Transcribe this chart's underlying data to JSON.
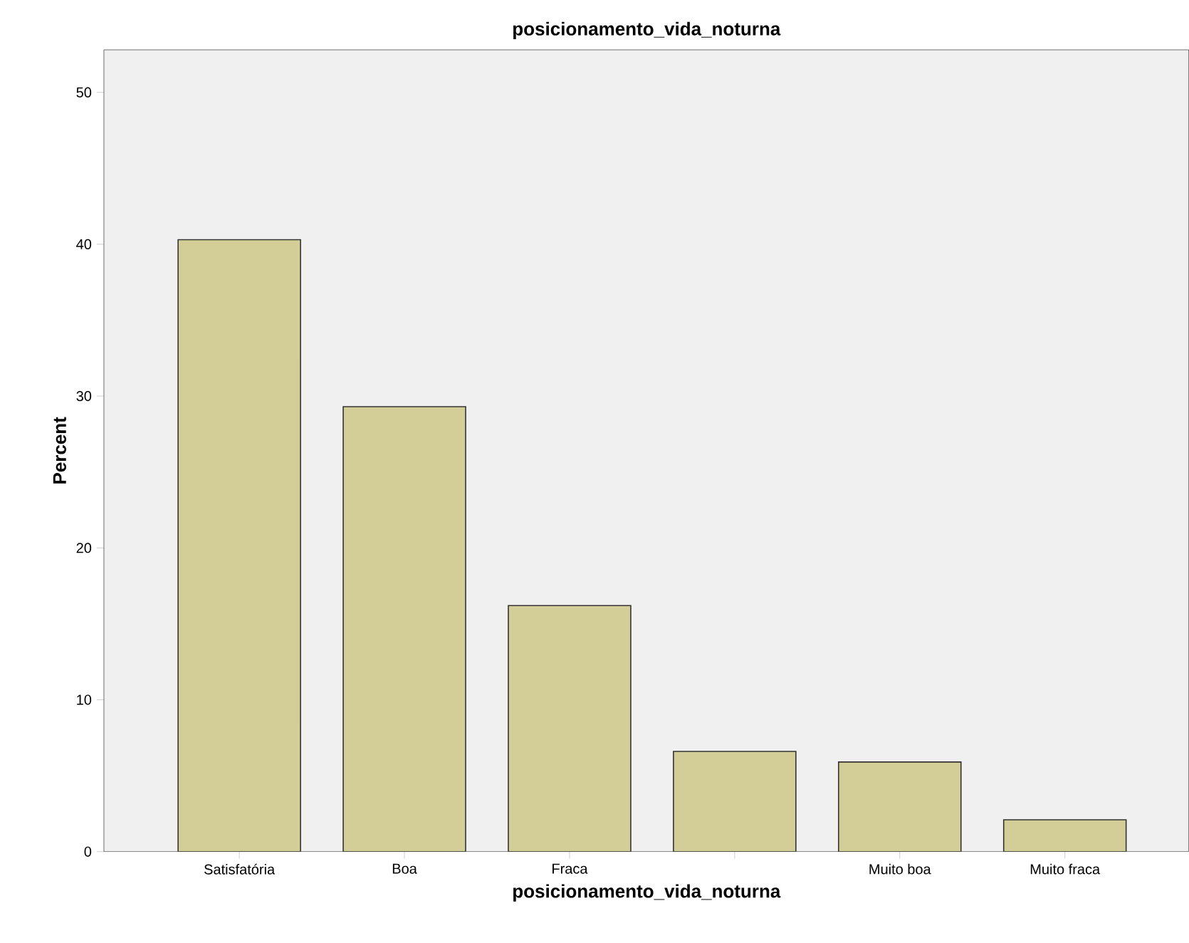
{
  "chart_data": {
    "type": "bar",
    "title": "posicionamento_vida_noturna",
    "xlabel": "posicionamento_vida_noturna",
    "ylabel": "Percent",
    "categories": [
      "Satisfatória",
      "Boa",
      "Fraca",
      null,
      "Muito boa",
      "Muito fraca"
    ],
    "values": [
      40.3,
      29.3,
      16.2,
      6.6,
      5.9,
      2.1
    ],
    "color": "#d3ce97",
    "ylim": [
      0,
      52.8
    ],
    "yticks": [
      0,
      10,
      20,
      30,
      40,
      50
    ]
  }
}
